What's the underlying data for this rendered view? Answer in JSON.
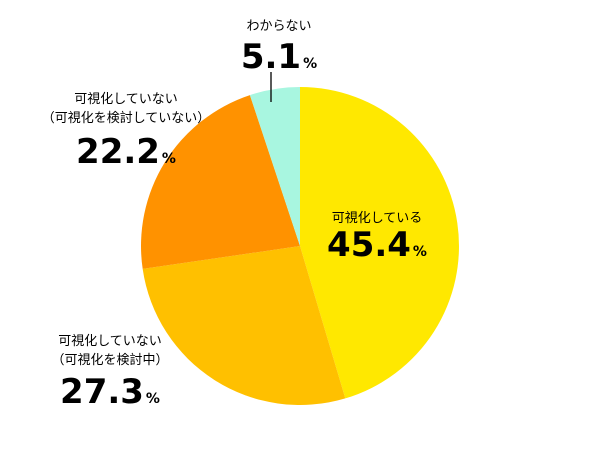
{
  "chart_data": {
    "type": "pie",
    "title": "",
    "unit": "%",
    "slices": [
      {
        "label_lines": [
          "可視化している"
        ],
        "value": 45.4,
        "value_text": "45.4",
        "color": "#ffe800"
      },
      {
        "label_lines": [
          "可視化していない",
          "（可視化を検討中）"
        ],
        "value": 27.3,
        "value_text": "27.3",
        "color": "#ffc000"
      },
      {
        "label_lines": [
          "可視化していない",
          "（可視化を検討していない）"
        ],
        "value": 22.2,
        "value_text": "22.2",
        "color": "#ff9200"
      },
      {
        "label_lines": [
          "わからない"
        ],
        "value": 5.1,
        "value_text": "5.1",
        "color": "#a8f6e0"
      }
    ]
  }
}
